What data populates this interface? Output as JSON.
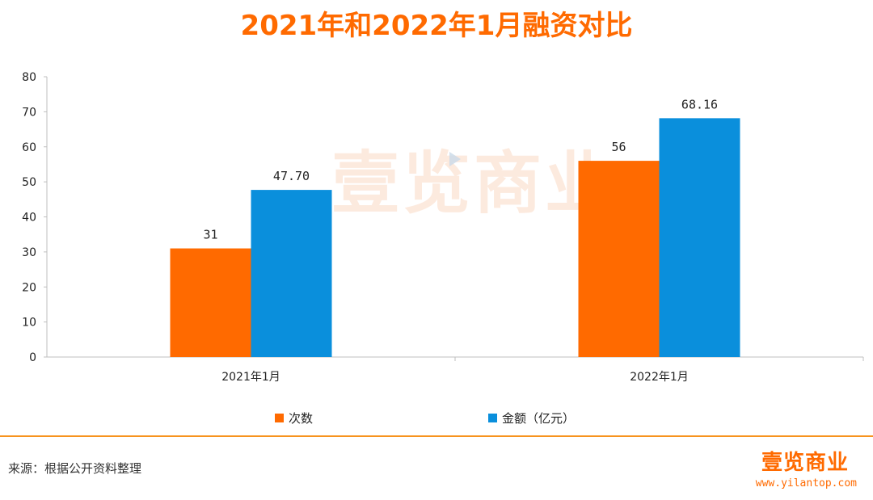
{
  "title": "2021年和2022年1月融资对比",
  "watermark": "壹览商业",
  "colors": {
    "series1": "#FF6A00",
    "series2": "#0A8FDC",
    "accent": "#FF6A00"
  },
  "chart_data": {
    "type": "bar",
    "title": "2021年和2022年1月融资对比",
    "categories": [
      "2021年1月",
      "2022年1月"
    ],
    "series": [
      {
        "name": "次数",
        "values": [
          31,
          56
        ],
        "labels": [
          "31",
          "56"
        ],
        "color": "#FF6A00"
      },
      {
        "name": "金额（亿元）",
        "values": [
          47.7,
          68.16
        ],
        "labels": [
          "47.70",
          "68.16"
        ],
        "color": "#0A8FDC"
      }
    ],
    "ylim": [
      0,
      80
    ],
    "yticks": [
      0,
      10,
      20,
      30,
      40,
      50,
      60,
      70,
      80
    ],
    "xlabel": "",
    "ylabel": "",
    "legend": "bottom"
  },
  "footer": {
    "source": "来源：根据公开资料整理",
    "brand": "壹览商业",
    "url": "www.yilantop.com"
  }
}
